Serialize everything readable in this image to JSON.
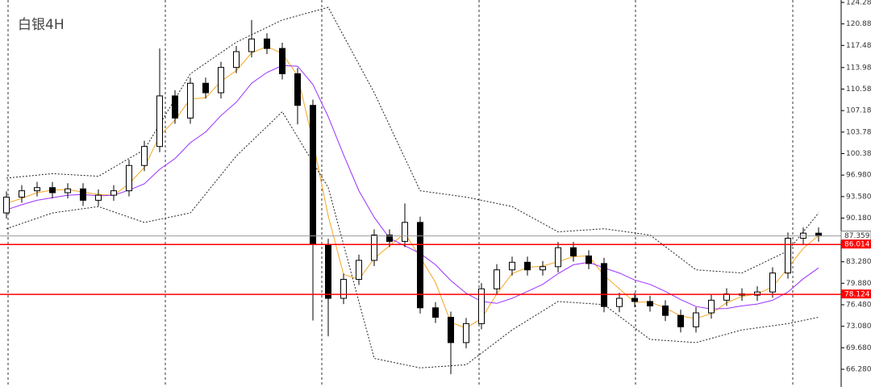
{
  "chart_data": {
    "type": "candlestick",
    "title": "白银4H",
    "ylim": [
      63.48,
      124.66
    ],
    "yticks": [
      {
        "value": 124.28,
        "label": "124.280"
      },
      {
        "value": 120.88,
        "label": "120.880"
      },
      {
        "value": 117.48,
        "label": "117.480"
      },
      {
        "value": 113.98,
        "label": "113.980"
      },
      {
        "value": 110.58,
        "label": "110.580"
      },
      {
        "value": 107.18,
        "label": "107.180"
      },
      {
        "value": 103.78,
        "label": "103.780"
      },
      {
        "value": 100.38,
        "label": "100.380"
      },
      {
        "value": 96.98,
        "label": "96.980"
      },
      {
        "value": 93.58,
        "label": "93.580"
      },
      {
        "value": 90.18,
        "label": "90.180"
      },
      {
        "value": 83.28,
        "label": "83.280"
      },
      {
        "value": 79.88,
        "label": "79.880"
      },
      {
        "value": 76.48,
        "label": "76.480"
      },
      {
        "value": 73.08,
        "label": "73.080"
      },
      {
        "value": 69.68,
        "label": "69.680"
      },
      {
        "value": 66.28,
        "label": "66.280"
      }
    ],
    "open": [
      91.0,
      93.5,
      94.5,
      95.0,
      94.2,
      94.8,
      93.0,
      93.8,
      94.5,
      98.5,
      101.5,
      109.5,
      106.0,
      111.5,
      110.0,
      114.0,
      116.5,
      118.5,
      117.0,
      113.0,
      108.0,
      86.0,
      77.5,
      80.5,
      83.5,
      87.5,
      86.5,
      89.5,
      76.0,
      74.5,
      70.5,
      73.5,
      79.0,
      82.0,
      83.2,
      82.0,
      82.5,
      85.5,
      84.2,
      83.0,
      76.2,
      77.5,
      77.0,
      76.3,
      74.8,
      73.0,
      75.2,
      77.2,
      78.2,
      78.0,
      78.5,
      81.5,
      87.0,
      87.8
    ],
    "high": [
      94.4,
      95.4,
      95.9,
      95.9,
      95.7,
      95.7,
      94.7,
      95.4,
      99.4,
      102.4,
      117.0,
      110.4,
      112.4,
      112.4,
      114.9,
      117.4,
      121.5,
      119.4,
      117.9,
      113.9,
      108.9,
      86.9,
      81.4,
      84.4,
      88.4,
      88.4,
      92.5,
      90.4,
      76.9,
      75.4,
      74.4,
      79.9,
      82.9,
      84.1,
      84.1,
      83.4,
      86.4,
      86.4,
      85.1,
      83.9,
      78.4,
      78.4,
      77.9,
      77.2,
      75.7,
      76.1,
      78.1,
      79.1,
      79.1,
      79.4,
      82.4,
      87.9,
      88.7,
      88.7
    ],
    "low": [
      90.1,
      92.6,
      93.6,
      93.3,
      93.3,
      92.1,
      92.1,
      92.9,
      93.6,
      97.6,
      100.6,
      105.1,
      105.1,
      109.1,
      109.1,
      113.1,
      115.6,
      116.1,
      112.1,
      105.0,
      74.0,
      71.5,
      76.6,
      79.6,
      82.6,
      85.6,
      85.6,
      75.1,
      73.6,
      65.5,
      69.6,
      72.6,
      78.1,
      81.1,
      81.1,
      81.1,
      81.6,
      83.3,
      82.1,
      75.3,
      75.3,
      76.1,
      75.4,
      73.9,
      72.1,
      72.1,
      74.3,
      76.3,
      77.1,
      77.1,
      77.6,
      80.6,
      86.1,
      86.46
    ],
    "close": [
      93.5,
      94.5,
      95.0,
      94.2,
      94.8,
      93.0,
      93.8,
      94.5,
      98.5,
      101.5,
      109.5,
      106.0,
      111.5,
      110.0,
      114.0,
      116.5,
      118.5,
      117.0,
      113.0,
      108.0,
      86.0,
      77.5,
      80.5,
      83.5,
      87.5,
      86.5,
      89.5,
      76.0,
      74.5,
      70.5,
      73.5,
      79.0,
      82.0,
      83.2,
      82.0,
      82.5,
      85.5,
      84.2,
      83.0,
      76.2,
      77.5,
      77.0,
      76.3,
      74.8,
      73.0,
      75.2,
      77.2,
      78.2,
      78.0,
      78.5,
      81.5,
      87.0,
      87.8,
      87.359
    ],
    "lines": [
      {
        "color": "#f5a623",
        "dashed": false,
        "x": [
          0,
          1,
          2,
          3,
          4,
          5,
          6,
          7,
          8,
          9,
          10,
          11,
          12,
          13,
          14,
          15,
          16,
          17,
          18,
          19,
          20,
          21,
          22,
          23,
          24,
          25,
          26,
          27,
          28,
          29,
          30,
          31,
          32,
          33,
          34,
          35,
          36,
          37,
          38,
          39,
          40,
          41,
          42,
          43,
          44,
          45,
          46,
          47,
          48,
          49,
          50,
          51,
          52,
          53
        ],
        "values": [
          92.5,
          93.3,
          94.2,
          94.6,
          94.7,
          94.3,
          93.9,
          93.8,
          95.6,
          98.2,
          103.2,
          105.7,
          109.0,
          109.2,
          111.8,
          113.5,
          116.3,
          117.3,
          116.2,
          112.7,
          102.3,
          90.5,
          81.3,
          80.5,
          83.8,
          85.8,
          87.8,
          84.0,
          80.0,
          73.7,
          72.8,
          74.3,
          78.2,
          81.4,
          82.4,
          82.6,
          83.3,
          84.1,
          84.2,
          81.1,
          79.0,
          76.9,
          76.9,
          76.0,
          74.7,
          74.3,
          75.1,
          76.8,
          77.8,
          78.2,
          79.3,
          82.3,
          85.4,
          87.4
        ]
      },
      {
        "color": "#9b30ff",
        "dashed": false,
        "x": [
          0,
          1,
          2,
          3,
          4,
          5,
          6,
          7,
          8,
          9,
          10,
          11,
          12,
          13,
          14,
          15,
          16,
          17,
          18,
          19,
          20,
          21,
          22,
          23,
          24,
          25,
          26,
          27,
          28,
          29,
          30,
          31,
          32,
          33,
          34,
          35,
          36,
          37,
          38,
          39,
          40,
          41,
          42,
          43,
          44,
          45,
          46,
          47,
          48,
          49,
          50,
          51,
          52,
          53
        ],
        "values": [
          91.5,
          92.3,
          93.0,
          93.4,
          93.8,
          93.9,
          93.7,
          93.8,
          94.6,
          95.6,
          97.9,
          99.6,
          102.1,
          103.8,
          106.4,
          108.5,
          111.5,
          113.2,
          114.3,
          114.2,
          111.3,
          106.2,
          100.2,
          94.5,
          90.3,
          87.0,
          85.8,
          84.6,
          82.8,
          80.3,
          78.3,
          77.0,
          76.7,
          77.5,
          78.6,
          79.7,
          81.4,
          82.8,
          83.2,
          82.3,
          81.5,
          80.4,
          79.7,
          78.6,
          77.3,
          76.2,
          75.8,
          75.9,
          76.3,
          76.6,
          77.2,
          78.5,
          80.6,
          82.3
        ]
      },
      {
        "color": "#222222",
        "dashed": true,
        "x": [
          0,
          3,
          6,
          9,
          12,
          15,
          18,
          21,
          24,
          27,
          30,
          33,
          36,
          39,
          42,
          45,
          48,
          51,
          53
        ],
        "values": [
          96.5,
          97.2,
          96.8,
          101,
          113,
          118,
          121.5,
          123.5,
          110,
          94.5,
          93.5,
          92,
          88,
          88.5,
          87.5,
          82,
          81.5,
          85,
          91.0
        ]
      },
      {
        "color": "#222222",
        "dashed": true,
        "x": [
          0,
          3,
          6,
          9,
          12,
          15,
          18,
          21,
          24,
          27,
          30,
          33,
          36,
          39,
          42,
          45,
          48,
          51,
          53
        ],
        "values": [
          88.5,
          91.0,
          92.0,
          89.5,
          91.0,
          100,
          107,
          95,
          68,
          66.5,
          67,
          72.5,
          77,
          76.5,
          71,
          70.5,
          72.5,
          73.5,
          74.5
        ]
      }
    ],
    "levels": [
      {
        "value": 86.014,
        "color": "#ff0000"
      },
      {
        "value": 78.124,
        "color": "#ff0000"
      }
    ],
    "last_price": 87.359,
    "last_price_color": "#9a9a9a",
    "up_color": "#ffffff",
    "down_color": "#000000"
  }
}
